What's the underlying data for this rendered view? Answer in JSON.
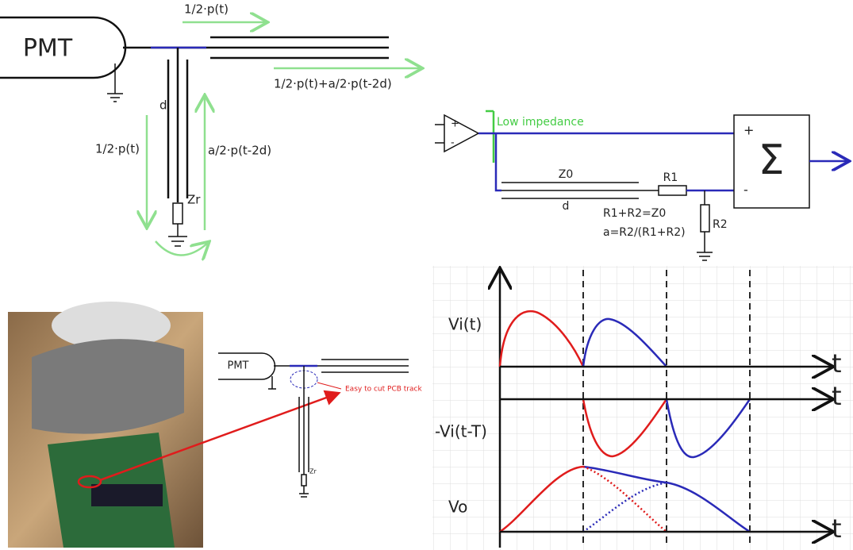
{
  "top_diagram": {
    "pmt_label": "PMT",
    "incident_wave": "1/2·p(t)",
    "output_wave": "1/2·p(t)+a/2·p(t-2d)",
    "stub_length": "d",
    "down_wave": "1/2·p(t)",
    "reflected_wave": "a/2·p(t-2d)",
    "termination": "Zr"
  },
  "circuit": {
    "amp_plus": "+",
    "amp_minus": "-",
    "buffer_note": "Low impedance",
    "line_impedance": "Z0",
    "line_length": "d",
    "r1": "R1",
    "r2": "R2",
    "condition": "R1+R2=Z0",
    "attenuation": "a=R2/(R1+R2)",
    "summer_plus": "+",
    "summer_minus": "-",
    "summer_symbol": "Σ"
  },
  "pcb_sketch": {
    "pmt_label": "PMT",
    "annotation": "Easy to cut PCB track",
    "termination": "Zr"
  },
  "waveforms": {
    "rows": [
      {
        "label": "Vi(t)",
        "axis": "t"
      },
      {
        "label": "-Vi(t-T)",
        "axis": "t"
      },
      {
        "label": "Vo",
        "axis": "t"
      }
    ]
  }
}
